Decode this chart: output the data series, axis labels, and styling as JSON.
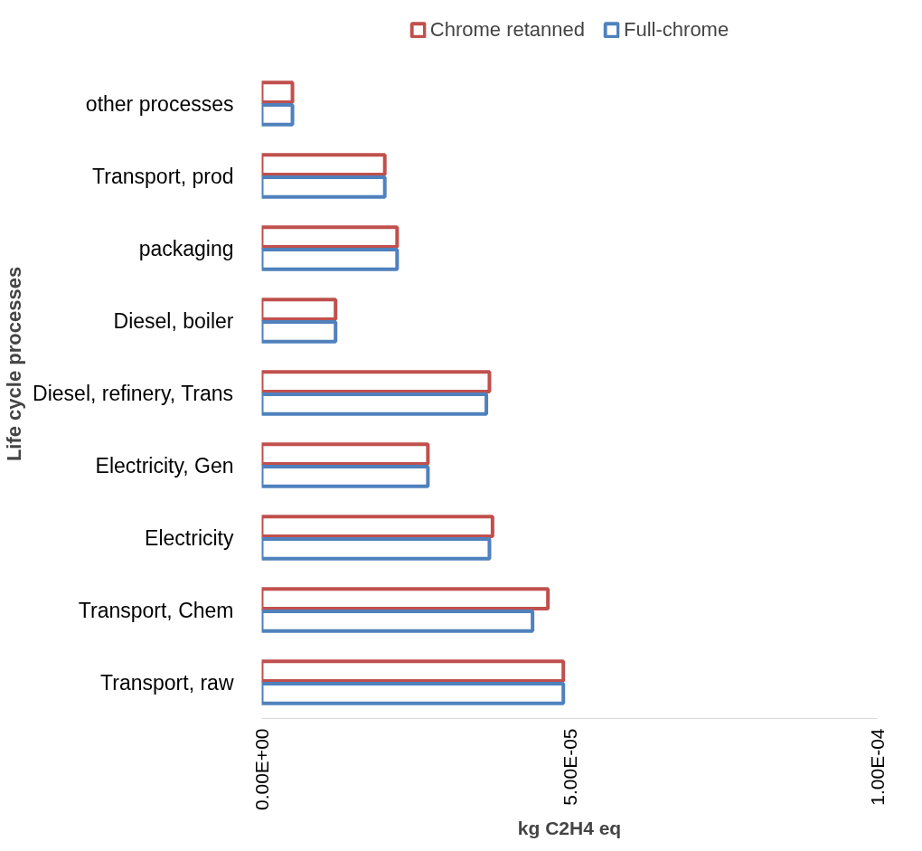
{
  "chart_data": {
    "type": "bar",
    "orientation": "horizontal",
    "xlabel": "kg C2H4 eq",
    "ylabel": "Life cycle processes",
    "categories": [
      "other processes",
      "Transport, prod",
      "packaging",
      "Diesel, boiler",
      "Diesel, refinery, Trans",
      "Electricity, Gen",
      "Electricity",
      "Transport, Chem",
      "Transport, raw"
    ],
    "series": [
      {
        "name": "Chrome retanned",
        "color": "#c0504d",
        "values": [
          5e-06,
          2e-05,
          2.2e-05,
          1.2e-05,
          3.7e-05,
          2.7e-05,
          3.75e-05,
          4.65e-05,
          4.9e-05
        ]
      },
      {
        "name": "Full-chrome",
        "color": "#4f81bd",
        "values": [
          5e-06,
          2e-05,
          2.2e-05,
          1.2e-05,
          3.65e-05,
          2.7e-05,
          3.7e-05,
          4.4e-05,
          4.9e-05
        ]
      }
    ],
    "xlim": [
      0,
      0.0001
    ],
    "xticks": [
      {
        "value": 0,
        "label": "0.00E+00"
      },
      {
        "value": 5e-05,
        "label": "5.00E-05"
      },
      {
        "value": 0.0001,
        "label": "1.00E-04"
      }
    ],
    "grid": false,
    "legend": "top"
  }
}
